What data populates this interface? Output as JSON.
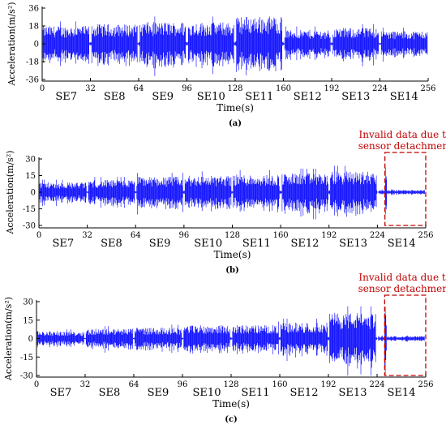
{
  "chart_data": [
    {
      "type": "line",
      "panel": "(a)",
      "xlabel": "Time(s)",
      "ylabel": "Acceleration(m/s²)",
      "xlim": [
        0,
        256
      ],
      "ylim": [
        -36,
        36
      ],
      "xticks": [
        "0",
        "32",
        "64",
        "96",
        "128",
        "160",
        "192",
        "224",
        "256"
      ],
      "yticks": [
        "36",
        "18",
        "0",
        "-18",
        "-36"
      ],
      "segments": [
        "SE7",
        "SE8",
        "SE9",
        "SE10",
        "SE11",
        "SE12",
        "SE13",
        "SE14"
      ],
      "amplitude_envelope": [
        {
          "t_start": 0,
          "t_end": 32,
          "amp": 18
        },
        {
          "t_start": 32,
          "t_end": 64,
          "amp": 20
        },
        {
          "t_start": 64,
          "t_end": 96,
          "amp": 22
        },
        {
          "t_start": 96,
          "t_end": 128,
          "amp": 22
        },
        {
          "t_start": 128,
          "t_end": 160,
          "amp": 28
        },
        {
          "t_start": 160,
          "t_end": 192,
          "amp": 14
        },
        {
          "t_start": 192,
          "t_end": 224,
          "amp": 16
        },
        {
          "t_start": 224,
          "t_end": 256,
          "amp": 13
        }
      ],
      "series_color": "#0000ff"
    },
    {
      "type": "line",
      "panel": "(b)",
      "xlabel": "Time(s)",
      "ylabel": "Acceleration(m/s²)",
      "xlim": [
        0,
        256
      ],
      "ylim": [
        -30,
        30
      ],
      "xticks": [
        "0",
        "32",
        "64",
        "96",
        "128",
        "160",
        "192",
        "224",
        "256"
      ],
      "yticks": [
        "30",
        "15",
        "0",
        "-15",
        "-30"
      ],
      "segments": [
        "SE7",
        "SE8",
        "SE9",
        "SE10",
        "SE11",
        "SE12",
        "SE13",
        "SE14"
      ],
      "amplitude_envelope": [
        {
          "t_start": 0,
          "t_end": 32,
          "amp": 9
        },
        {
          "t_start": 32,
          "t_end": 64,
          "amp": 11
        },
        {
          "t_start": 64,
          "t_end": 96,
          "amp": 14
        },
        {
          "t_start": 96,
          "t_end": 128,
          "amp": 15
        },
        {
          "t_start": 128,
          "t_end": 160,
          "amp": 16
        },
        {
          "t_start": 160,
          "t_end": 192,
          "amp": 17
        },
        {
          "t_start": 192,
          "t_end": 224,
          "amp": 19
        },
        {
          "t_start": 224,
          "t_end": 256,
          "amp": 2
        }
      ],
      "invalid_region": {
        "t_start": 229,
        "t_end": 256,
        "label_line1": "Invalid data due to",
        "label_line2": "sensor detachment"
      },
      "series_color": "#0000ff"
    },
    {
      "type": "line",
      "panel": "(c)",
      "xlabel": "Time(s)",
      "ylabel": "Acceleration(m/s²)",
      "xlim": [
        0,
        256
      ],
      "ylim": [
        -30,
        30
      ],
      "xticks": [
        "0",
        "32",
        "64",
        "96",
        "128",
        "160",
        "192",
        "224",
        "256"
      ],
      "yticks": [
        "30",
        "15",
        "0",
        "-15",
        "-30"
      ],
      "segments": [
        "SE7",
        "SE8",
        "SE9",
        "SE10",
        "SE11",
        "SE12",
        "SE13",
        "SE14"
      ],
      "amplitude_envelope": [
        {
          "t_start": 0,
          "t_end": 32,
          "amp": 6
        },
        {
          "t_start": 32,
          "t_end": 64,
          "amp": 8
        },
        {
          "t_start": 64,
          "t_end": 96,
          "amp": 9
        },
        {
          "t_start": 96,
          "t_end": 128,
          "amp": 11
        },
        {
          "t_start": 128,
          "t_end": 160,
          "amp": 11
        },
        {
          "t_start": 160,
          "t_end": 192,
          "amp": 13
        },
        {
          "t_start": 192,
          "t_end": 224,
          "amp": 21
        },
        {
          "t_start": 224,
          "t_end": 256,
          "amp": 2
        }
      ],
      "invalid_region": {
        "t_start": 229,
        "t_end": 256,
        "label_line1": "Invalid data due to",
        "label_line2": "sensor detachment"
      },
      "series_color": "#0000ff"
    }
  ],
  "colors": {
    "signal": "#0000ff",
    "annotation": "#c00000",
    "axis": "#000000"
  }
}
